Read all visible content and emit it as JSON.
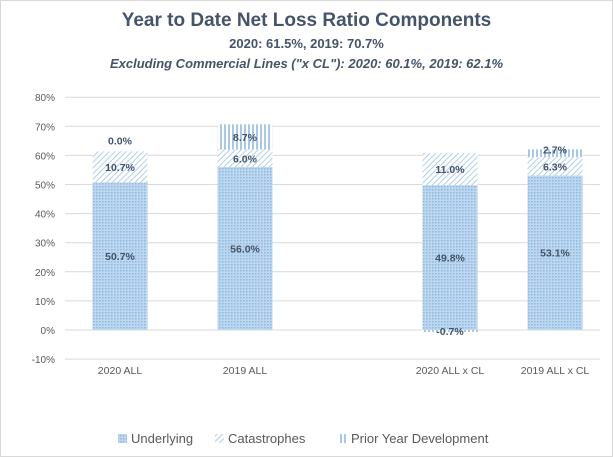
{
  "chart_data": {
    "type": "bar",
    "stacked": true,
    "title": "Year to Date Net Loss Ratio Components",
    "subtitle": "2020: 61.5%, 2019: 70.7%",
    "subtitle2": "Excluding Commercial Lines (\"x CL\"): 2020: 60.1%, 2019: 62.1%",
    "categories": [
      "2020 ALL",
      "2019 ALL",
      "",
      "2020 ALL x CL",
      "2019 ALL x CL"
    ],
    "series": [
      {
        "name": "Underlying",
        "values": [
          50.7,
          56.0,
          null,
          49.8,
          53.1
        ],
        "color": "#9dc3e6"
      },
      {
        "name": "Catastrophes",
        "values": [
          10.7,
          6.0,
          null,
          11.0,
          6.3
        ],
        "color": "#9dc3e6"
      },
      {
        "name": "Prior Year Development",
        "values": [
          0.0,
          8.7,
          null,
          -0.7,
          2.7
        ],
        "color": "#5b9bd5"
      }
    ],
    "data_labels": [
      [
        "50.7%",
        "56.0%",
        "",
        "49.8%",
        "53.1%"
      ],
      [
        "10.7%",
        "6.0%",
        "",
        "11.0%",
        "6.3%"
      ],
      [
        "0.0%",
        "8.7%",
        "",
        "-0.7%",
        "2.7%"
      ]
    ],
    "yticks": [
      "-10%",
      "0%",
      "10%",
      "20%",
      "30%",
      "40%",
      "50%",
      "60%",
      "70%",
      "80%"
    ],
    "ylim": [
      -10,
      80
    ],
    "grid": true,
    "legend_position": "bottom",
    "xlabel": "",
    "ylabel": ""
  }
}
